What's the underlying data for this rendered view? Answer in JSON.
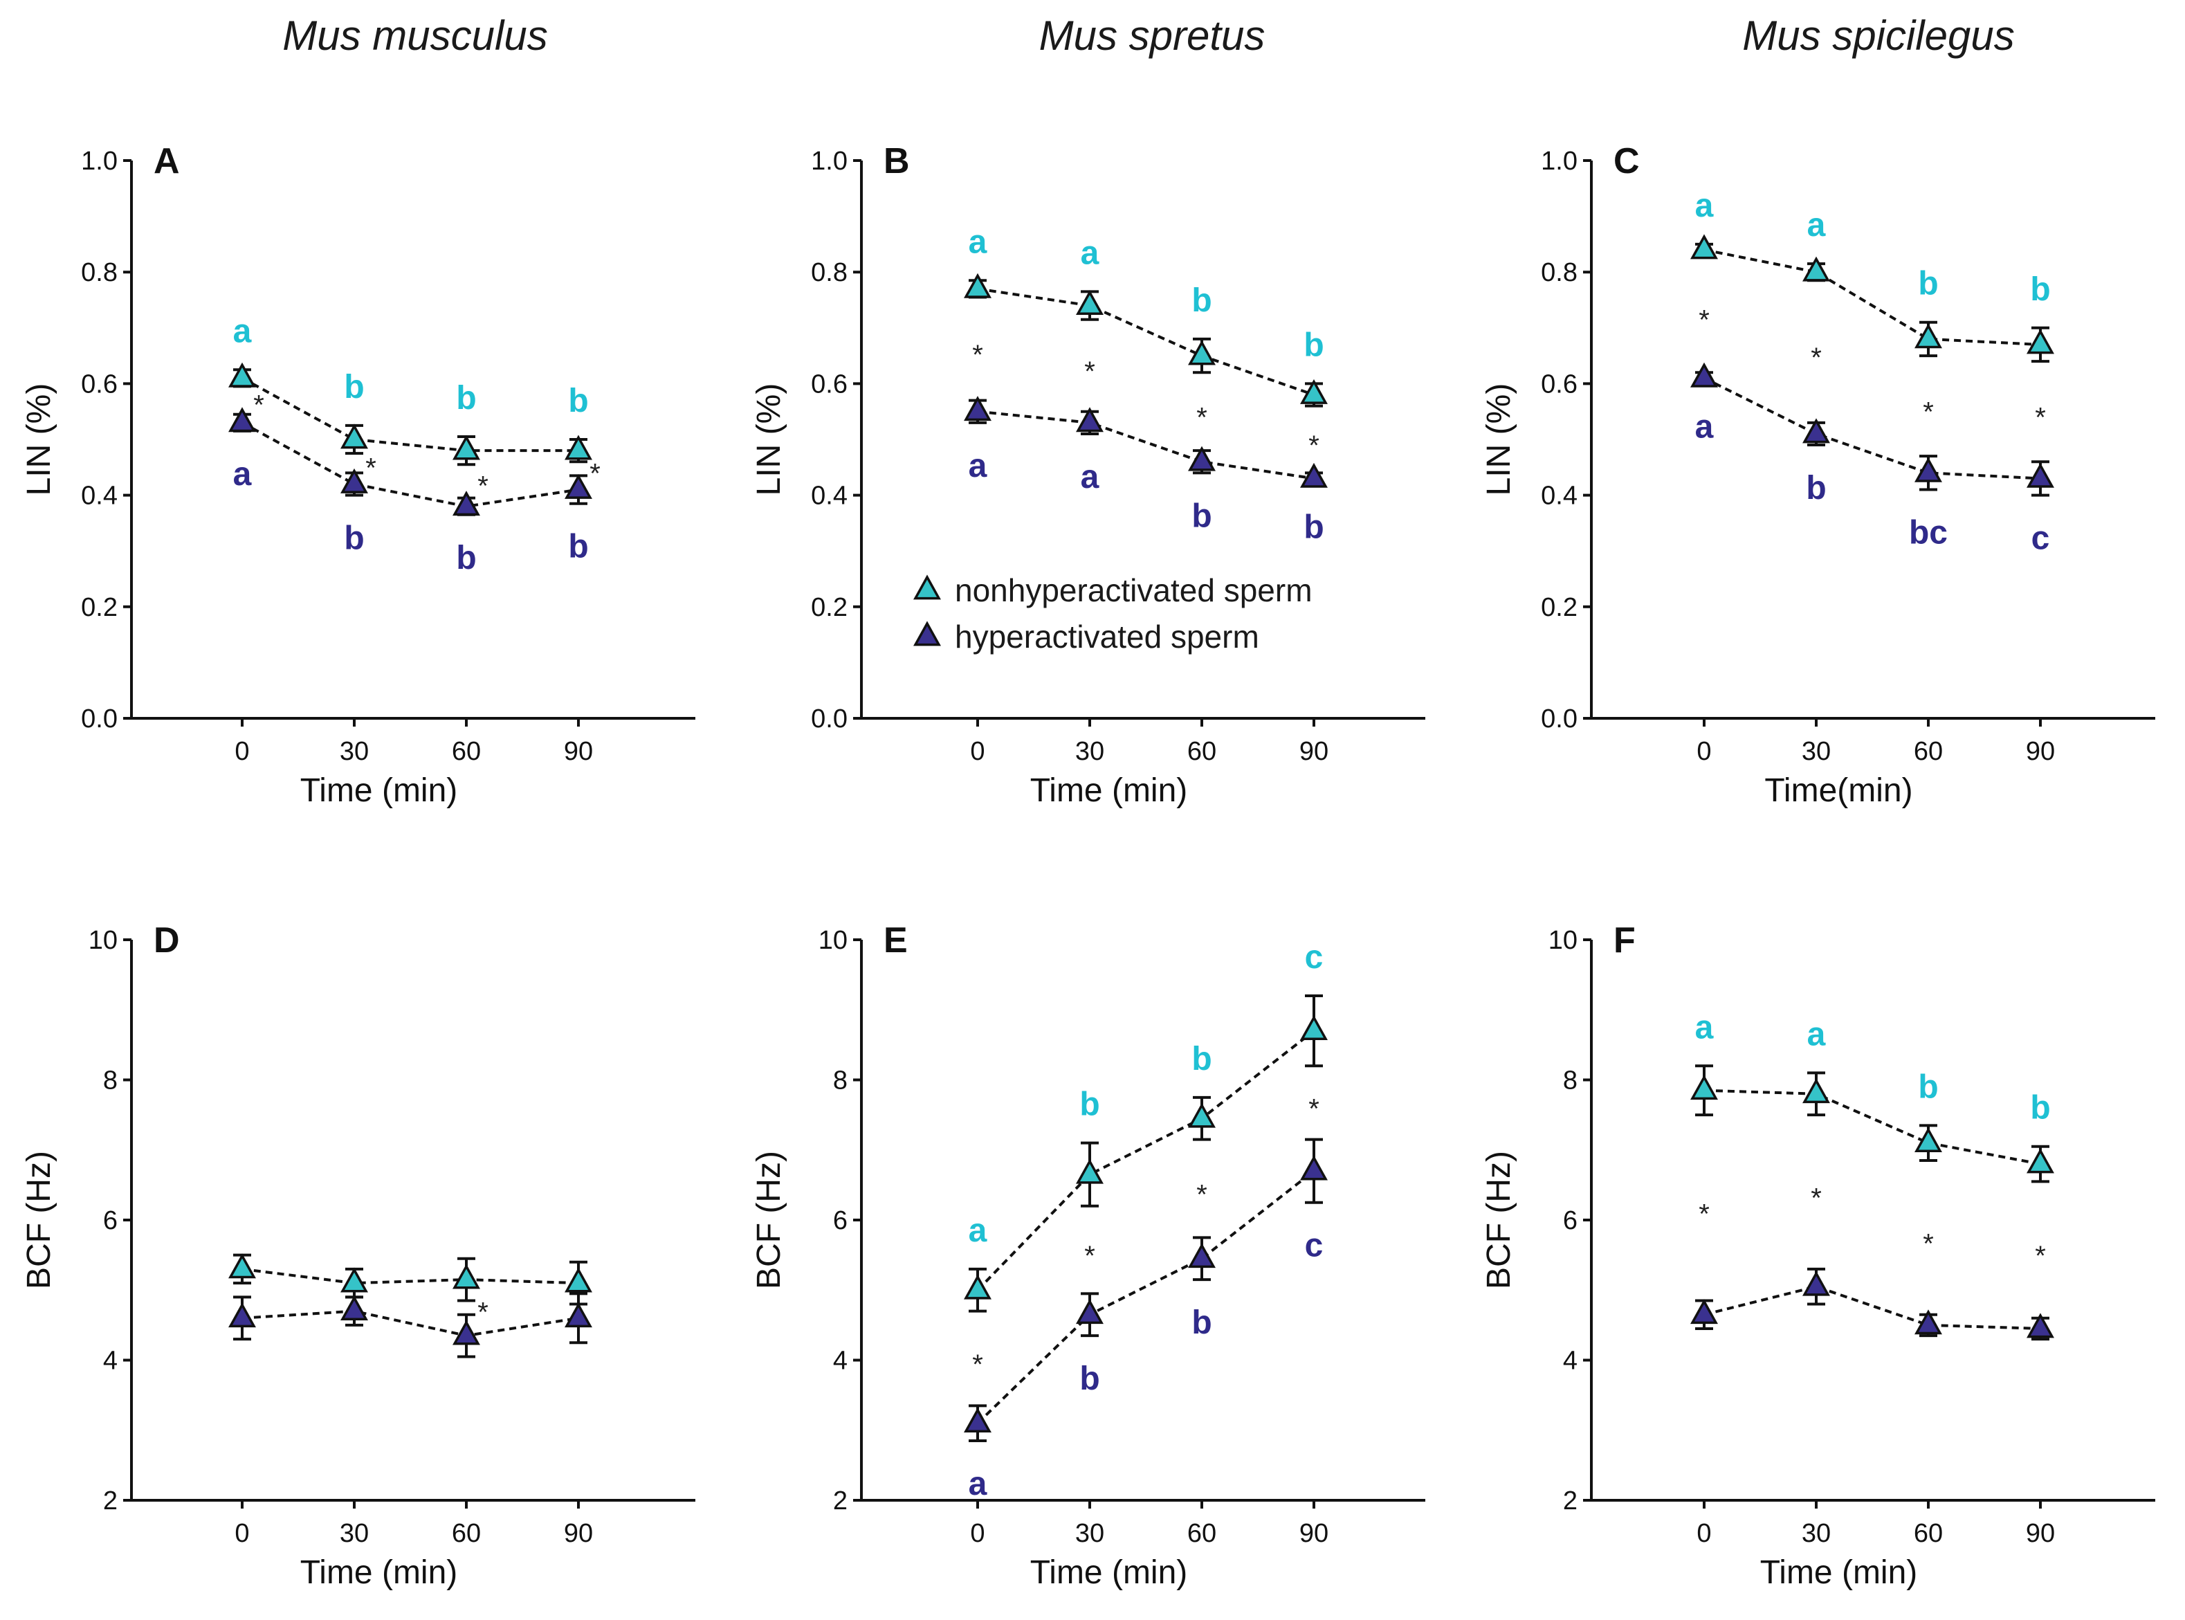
{
  "colors": {
    "nonhyper": "#35c3c8",
    "hyper": "#3a318f",
    "nonhyper_letter": "#1fc0d3",
    "hyper_letter": "#2f2a8a"
  },
  "legend": {
    "nonhyper": "nonhyperactivated sperm",
    "hyper": "hyperactivated sperm"
  },
  "chart_data": [
    {
      "type": "line",
      "panel": "A",
      "column_title": "Mus musculus",
      "ylabel": "LIN (%)",
      "xlabel": "Time (min)",
      "ylim": [
        0,
        1.0
      ],
      "yticks": [
        "0.0",
        "0.2",
        "0.4",
        "0.6",
        "0.8",
        "1.0"
      ],
      "x": [
        0,
        30,
        60,
        90
      ],
      "xticks": [
        "0",
        "30",
        "60",
        "90"
      ],
      "series": [
        {
          "name": "nonhyperactivated sperm",
          "key": "nonhyper",
          "values": [
            0.61,
            0.5,
            0.48,
            0.48
          ],
          "errors": [
            0.015,
            0.025,
            0.025,
            0.02
          ],
          "letters": [
            "a",
            "b",
            "b",
            "b"
          ]
        },
        {
          "name": "hyperactivated sperm",
          "key": "hyper",
          "values": [
            0.53,
            0.42,
            0.38,
            0.41
          ],
          "errors": [
            0.015,
            0.02,
            0.015,
            0.025
          ],
          "letters": [
            "a",
            "b",
            "b",
            "b"
          ]
        }
      ],
      "stars": [
        "*",
        "*",
        "*",
        "*"
      ]
    },
    {
      "type": "line",
      "panel": "B",
      "column_title": "Mus spretus",
      "ylabel": "LIN (%)",
      "xlabel": "Time (min)",
      "ylim": [
        0,
        1.0
      ],
      "yticks": [
        "0.0",
        "0.2",
        "0.4",
        "0.6",
        "0.8",
        "1.0"
      ],
      "x": [
        0,
        30,
        60,
        90
      ],
      "xticks": [
        "0",
        "30",
        "60",
        "90"
      ],
      "series": [
        {
          "name": "nonhyperactivated sperm",
          "key": "nonhyper",
          "values": [
            0.77,
            0.74,
            0.65,
            0.58
          ],
          "errors": [
            0.015,
            0.025,
            0.03,
            0.02
          ],
          "letters": [
            "a",
            "a",
            "b",
            "b"
          ]
        },
        {
          "name": "hyperactivated sperm",
          "key": "hyper",
          "values": [
            0.55,
            0.53,
            0.46,
            0.43
          ],
          "errors": [
            0.02,
            0.02,
            0.02,
            0.01
          ],
          "letters": [
            "a",
            "a",
            "b",
            "b"
          ]
        }
      ],
      "stars": [
        "*",
        "*",
        "*",
        "*"
      ],
      "legend": true
    },
    {
      "type": "line",
      "panel": "C",
      "column_title": "Mus spicilegus",
      "ylabel": "LIN (%)",
      "xlabel": "Time(min)",
      "ylim": [
        0,
        1.0
      ],
      "yticks": [
        "0.0",
        "0.2",
        "0.4",
        "0.6",
        "0.8",
        "1.0"
      ],
      "x": [
        0,
        30,
        60,
        90
      ],
      "xticks": [
        "0",
        "30",
        "60",
        "90"
      ],
      "series": [
        {
          "name": "nonhyperactivated sperm",
          "key": "nonhyper",
          "values": [
            0.84,
            0.8,
            0.68,
            0.67
          ],
          "errors": [
            0.01,
            0.015,
            0.03,
            0.03
          ],
          "letters": [
            "a",
            "a",
            "b",
            "b"
          ]
        },
        {
          "name": "hyperactivated sperm",
          "key": "hyper",
          "values": [
            0.61,
            0.51,
            0.44,
            0.43
          ],
          "errors": [
            0.01,
            0.02,
            0.03,
            0.03
          ],
          "letters": [
            "a",
            "b",
            "bc",
            "c"
          ]
        }
      ],
      "stars": [
        "*",
        "*",
        "*",
        "*"
      ]
    },
    {
      "type": "line",
      "panel": "D",
      "ylabel": "BCF (Hz)",
      "xlabel": "Time (min)",
      "ylim": [
        2,
        10
      ],
      "yticks": [
        "2",
        "4",
        "6",
        "8",
        "10"
      ],
      "x": [
        0,
        30,
        60,
        90
      ],
      "xticks": [
        "0",
        "30",
        "60",
        "90"
      ],
      "series": [
        {
          "name": "nonhyperactivated sperm",
          "key": "nonhyper",
          "values": [
            5.3,
            5.1,
            5.15,
            5.1
          ],
          "errors": [
            0.2,
            0.2,
            0.3,
            0.3
          ],
          "letters": [
            "",
            "",
            "",
            ""
          ]
        },
        {
          "name": "hyperactivated sperm",
          "key": "hyper",
          "values": [
            4.6,
            4.7,
            4.35,
            4.6
          ],
          "errors": [
            0.3,
            0.2,
            0.3,
            0.35
          ],
          "letters": [
            "",
            "",
            "",
            ""
          ]
        }
      ],
      "stars": [
        "",
        "",
        "*",
        ""
      ]
    },
    {
      "type": "line",
      "panel": "E",
      "ylabel": "BCF (Hz)",
      "xlabel": "Time (min)",
      "ylim": [
        2,
        10
      ],
      "yticks": [
        "2",
        "4",
        "6",
        "8",
        "10"
      ],
      "x": [
        0,
        30,
        60,
        90
      ],
      "xticks": [
        "0",
        "30",
        "60",
        "90"
      ],
      "series": [
        {
          "name": "nonhyperactivated sperm",
          "key": "nonhyper",
          "values": [
            5.0,
            6.65,
            7.45,
            8.7
          ],
          "errors": [
            0.3,
            0.45,
            0.3,
            0.5
          ],
          "letters": [
            "a",
            "b",
            "b",
            "c"
          ]
        },
        {
          "name": "hyperactivated sperm",
          "key": "hyper",
          "values": [
            3.1,
            4.65,
            5.45,
            6.7
          ],
          "errors": [
            0.25,
            0.3,
            0.3,
            0.45
          ],
          "letters": [
            "a",
            "b",
            "b",
            "c"
          ]
        }
      ],
      "stars": [
        "*",
        "*",
        "*",
        "*"
      ]
    },
    {
      "type": "line",
      "panel": "F",
      "ylabel": "BCF (Hz)",
      "xlabel": "Time (min)",
      "ylim": [
        2,
        10
      ],
      "yticks": [
        "2",
        "4",
        "6",
        "8",
        "10"
      ],
      "x": [
        0,
        30,
        60,
        90
      ],
      "xticks": [
        "0",
        "30",
        "60",
        "90"
      ],
      "series": [
        {
          "name": "nonhyperactivated sperm",
          "key": "nonhyper",
          "values": [
            7.85,
            7.8,
            7.1,
            6.8
          ],
          "errors": [
            0.35,
            0.3,
            0.25,
            0.25
          ],
          "letters": [
            "a",
            "a",
            "b",
            "b"
          ]
        },
        {
          "name": "hyperactivated sperm",
          "key": "hyper",
          "values": [
            4.65,
            5.05,
            4.5,
            4.45
          ],
          "errors": [
            0.2,
            0.25,
            0.15,
            0.15
          ],
          "letters": [
            "",
            "",
            "",
            ""
          ]
        }
      ],
      "stars": [
        "*",
        "*",
        "*",
        "*"
      ]
    }
  ]
}
